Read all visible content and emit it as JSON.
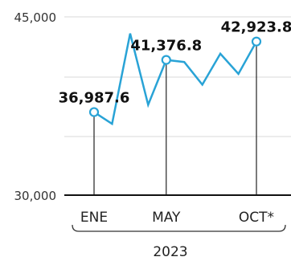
{
  "chart_data": {
    "type": "line",
    "ylim": [
      30000,
      45000
    ],
    "yticks": [
      "45,000",
      "30,000"
    ],
    "x_tick_labels": [
      {
        "label": "ENE",
        "index": 0
      },
      {
        "label": "MAY",
        "index": 4
      },
      {
        "label": "OCT*",
        "index": 9
      }
    ],
    "year_label": "2023",
    "series": [
      {
        "values": [
          36987.6,
          36000,
          43600,
          37600,
          41376.8,
          41200,
          39300,
          41900,
          40200,
          42923.8
        ],
        "color": "#29a3d6"
      }
    ],
    "annotations": [
      {
        "index": 0,
        "label": "36,987.6"
      },
      {
        "index": 4,
        "label": "41,376.8"
      },
      {
        "index": 9,
        "label": "42,923.8"
      }
    ],
    "grid": true
  }
}
